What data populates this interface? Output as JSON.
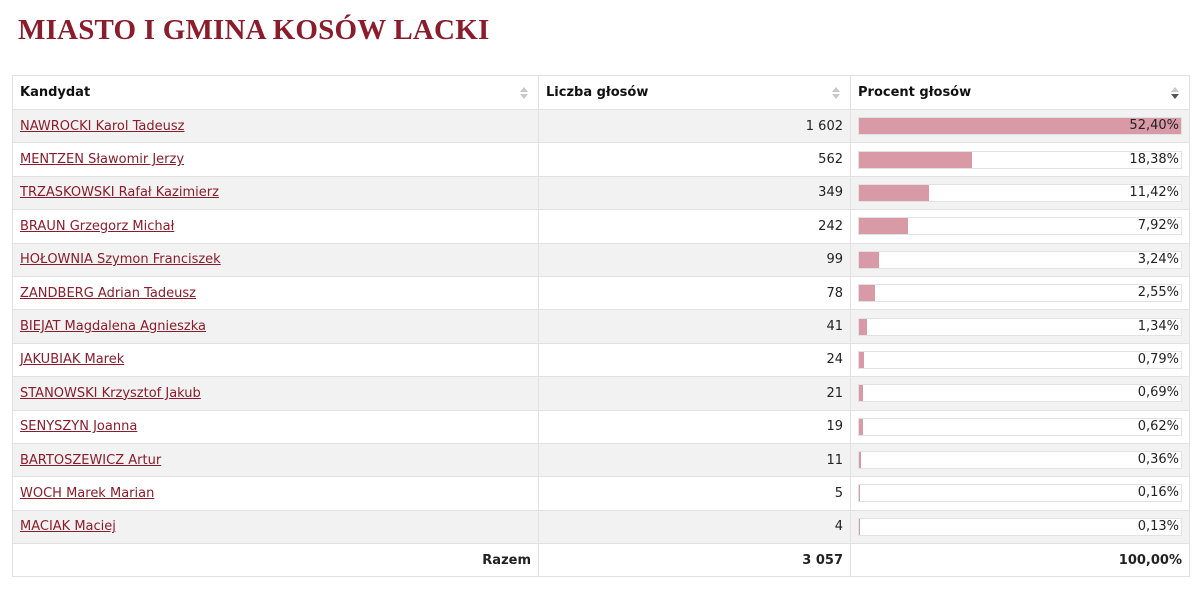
{
  "title": "MIASTO I GMINA KOSÓW LACKI",
  "table": {
    "headers": {
      "candidate": "Kandydat",
      "votes": "Liczba głosów",
      "percent": "Procent głosów"
    },
    "sort": {
      "column": "percent",
      "direction": "desc"
    },
    "rows": [
      {
        "name": "NAWROCKI Karol Tadeusz",
        "votes": "1 602",
        "percent": "52,40%",
        "fraction": 1.0
      },
      {
        "name": "MENTZEN Sławomir Jerzy",
        "votes": "562",
        "percent": "18,38%",
        "fraction": 0.3508
      },
      {
        "name": "TRZASKOWSKI Rafał Kazimierz",
        "votes": "349",
        "percent": "11,42%",
        "fraction": 0.2179
      },
      {
        "name": "BRAUN Grzegorz Michał",
        "votes": "242",
        "percent": "7,92%",
        "fraction": 0.1511
      },
      {
        "name": "HOŁOWNIA Szymon Franciszek",
        "votes": "99",
        "percent": "3,24%",
        "fraction": 0.0618
      },
      {
        "name": "ZANDBERG Adrian Tadeusz",
        "votes": "78",
        "percent": "2,55%",
        "fraction": 0.0487
      },
      {
        "name": "BIEJAT Magdalena Agnieszka",
        "votes": "41",
        "percent": "1,34%",
        "fraction": 0.0256
      },
      {
        "name": "JAKUBIAK Marek",
        "votes": "24",
        "percent": "0,79%",
        "fraction": 0.0151
      },
      {
        "name": "STANOWSKI Krzysztof Jakub",
        "votes": "21",
        "percent": "0,69%",
        "fraction": 0.0132
      },
      {
        "name": "SENYSZYN Joanna",
        "votes": "19",
        "percent": "0,62%",
        "fraction": 0.0118
      },
      {
        "name": "BARTOSZEWICZ Artur",
        "votes": "11",
        "percent": "0,36%",
        "fraction": 0.0069
      },
      {
        "name": "WOCH Marek Marian",
        "votes": "5",
        "percent": "0,16%",
        "fraction": 0.0031
      },
      {
        "name": "MACIAK Maciej",
        "votes": "4",
        "percent": "0,13%",
        "fraction": 0.0025
      }
    ],
    "footer": {
      "label": "Razem",
      "votes": "3 057",
      "percent": "100,00%"
    }
  },
  "colors": {
    "title": "#8b1c2b",
    "link": "#8b1c2b",
    "bar": "#d99aa8"
  }
}
